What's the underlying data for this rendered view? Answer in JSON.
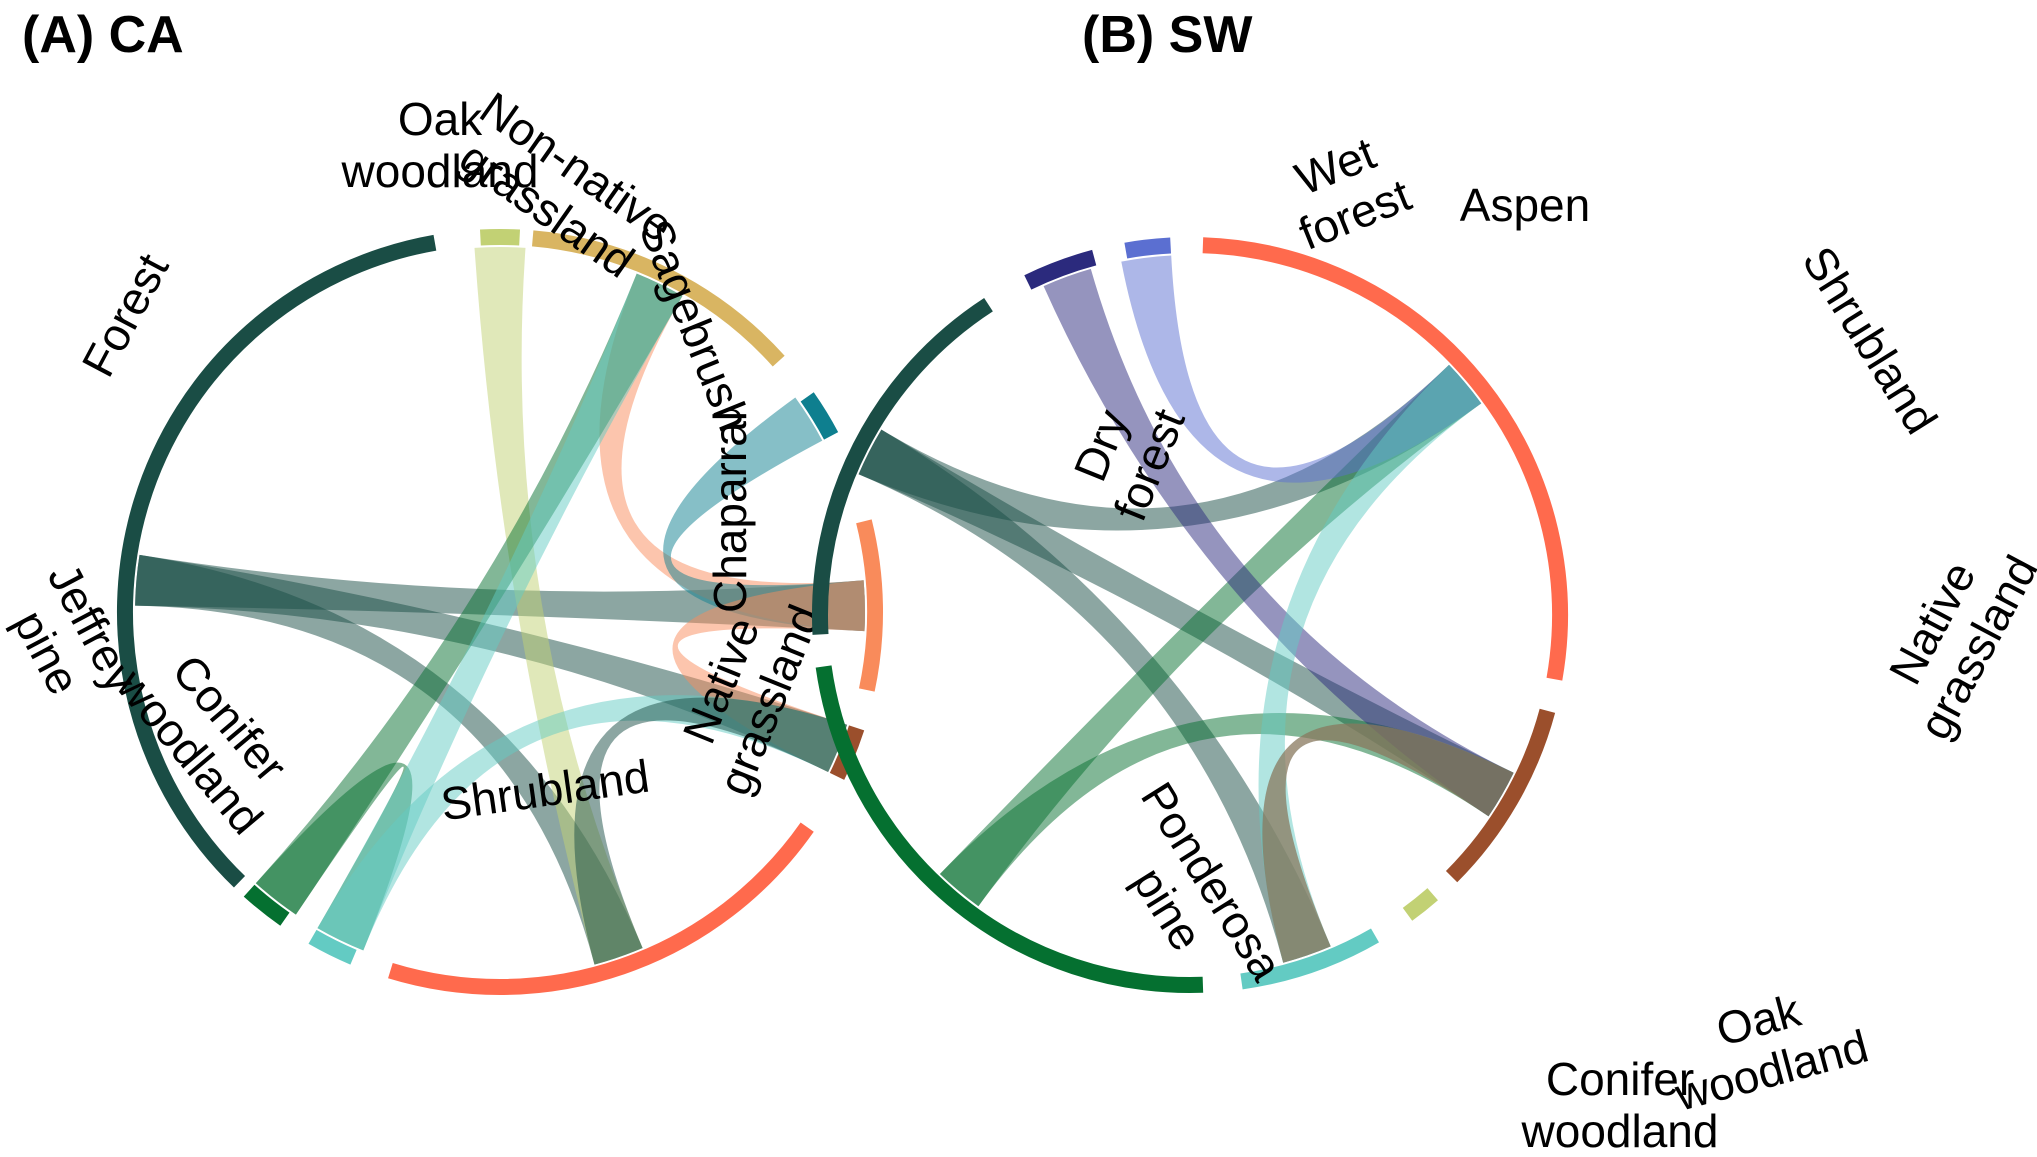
{
  "panels": [
    {
      "id": "ca",
      "title": "(A) CA",
      "sectors": [
        {
          "key": "forest",
          "lines": [
            "Forest"
          ],
          "color": "#1a4d45"
        },
        {
          "key": "oak",
          "lines": [
            "Oak",
            "woodland"
          ],
          "color": "#c2d174"
        },
        {
          "key": "nonnative",
          "lines": [
            "Non-native",
            "grassland"
          ],
          "color": "#d9b562"
        },
        {
          "key": "sagebrush",
          "lines": [
            "Sagebrush"
          ],
          "color": "#0e7f8f"
        },
        {
          "key": "chaparral",
          "lines": [
            "Chaparral"
          ],
          "color": "#f98b5b"
        },
        {
          "key": "native",
          "lines": [
            "Native",
            "grassland"
          ],
          "color": "#9b4f2c"
        },
        {
          "key": "shrubland",
          "lines": [
            "Shrubland"
          ],
          "color": "#ff6a4d"
        },
        {
          "key": "conifer",
          "lines": [
            "Conifer",
            "woodland"
          ],
          "color": "#63cbc3"
        },
        {
          "key": "jeffrey",
          "lines": [
            "Jeffrey",
            "pine"
          ],
          "color": "#057030"
        }
      ],
      "flows": [
        {
          "from": "forest",
          "to": "shrubland",
          "color": "#1a4d45"
        },
        {
          "from": "forest",
          "to": "chaparral",
          "color": "#1a4d45"
        },
        {
          "from": "forest",
          "to": "native",
          "color": "#1a4d45"
        },
        {
          "from": "oak",
          "to": "shrubland",
          "color": "#c2d174"
        },
        {
          "from": "nonnative",
          "to": "chaparral",
          "color": "#f98b5b"
        },
        {
          "from": "sagebrush",
          "to": "chaparral",
          "color": "#0e7f8f"
        },
        {
          "from": "chaparral",
          "to": "native",
          "color": "#f98b5b"
        },
        {
          "from": "jeffrey",
          "to": "nonnative",
          "color": "#057030"
        },
        {
          "from": "jeffrey",
          "to": "conifer",
          "color": "#057030"
        },
        {
          "from": "conifer",
          "to": "nonnative",
          "color": "#63cbc3"
        },
        {
          "from": "conifer",
          "to": "native",
          "color": "#63cbc3"
        },
        {
          "from": "shrubland",
          "to": "native",
          "color": "#1a4d45"
        }
      ]
    },
    {
      "id": "sw",
      "title": "(B) SW",
      "sectors": [
        {
          "key": "wet",
          "lines": [
            "Wet",
            "forest"
          ],
          "color": "#2b2a7d"
        },
        {
          "key": "aspen",
          "lines": [
            "Aspen"
          ],
          "color": "#5b6fd1"
        },
        {
          "key": "shrubland",
          "lines": [
            "Shrubland"
          ],
          "color": "#ff6a4d"
        },
        {
          "key": "native",
          "lines": [
            "Native",
            "grassland"
          ],
          "color": "#9b4f2c"
        },
        {
          "key": "oak",
          "lines": [
            "Oak",
            "woodland"
          ],
          "color": "#c2d174"
        },
        {
          "key": "conifer",
          "lines": [
            "Conifer",
            "woodland"
          ],
          "color": "#63cbc3"
        },
        {
          "key": "ponderosa",
          "lines": [
            "Ponderosa",
            "pine"
          ],
          "color": "#057030"
        },
        {
          "key": "dry",
          "lines": [
            "Dry",
            "forest"
          ],
          "color": "#1a4d45"
        }
      ],
      "flows": [
        {
          "from": "dry",
          "to": "shrubland",
          "color": "#1a4d45"
        },
        {
          "from": "dry",
          "to": "native",
          "color": "#1a4d45"
        },
        {
          "from": "dry",
          "to": "conifer",
          "color": "#1a4d45"
        },
        {
          "from": "ponderosa",
          "to": "shrubland",
          "color": "#057030"
        },
        {
          "from": "ponderosa",
          "to": "native",
          "color": "#057030"
        },
        {
          "from": "wet",
          "to": "native",
          "color": "#2b2a7d"
        },
        {
          "from": "aspen",
          "to": "shrubland",
          "color": "#5b6fd1"
        },
        {
          "from": "conifer",
          "to": "shrubland",
          "color": "#63cbc3"
        },
        {
          "from": "conifer",
          "to": "native",
          "color": "#63cbc3"
        },
        {
          "from": "native",
          "to": "conifer",
          "color": "#9b4f2c"
        }
      ]
    }
  ]
}
